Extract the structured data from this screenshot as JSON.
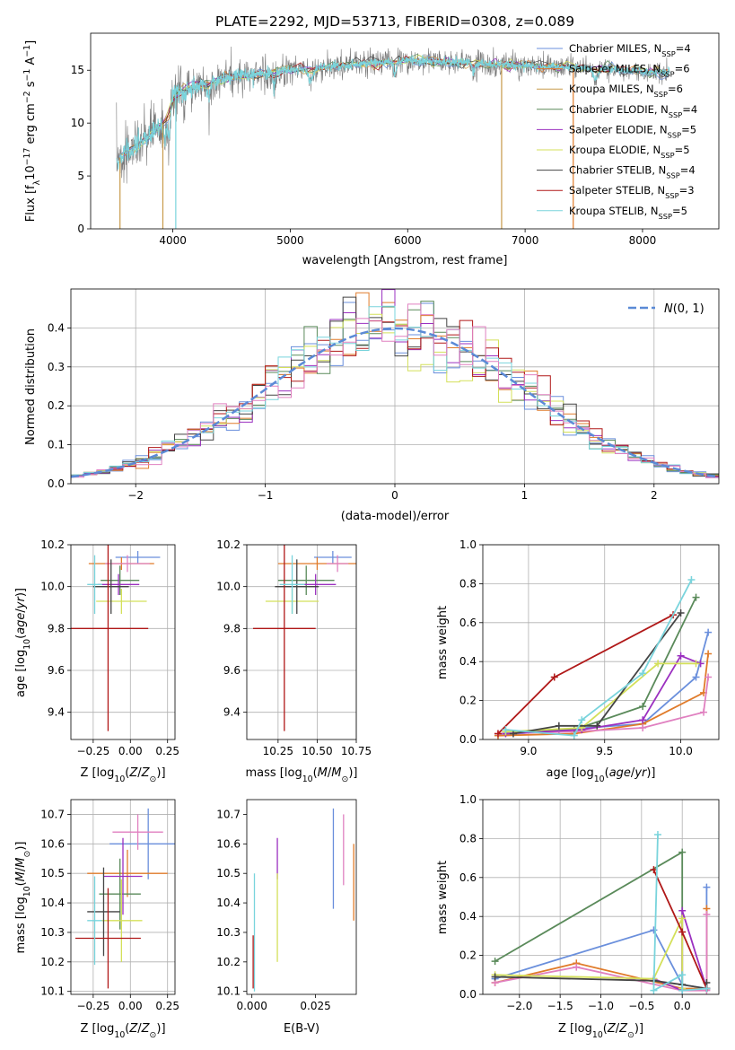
{
  "figure": {
    "title": "PLATE=2292, MJD=53713, FIBERID=0308, z=0.089"
  },
  "chart_data": [
    {
      "id": "spectrum",
      "type": "line",
      "title": "PLATE=2292, MJD=53713, FIBERID=0308, z=0.089",
      "xlabel": "wavelength [Angstrom, rest frame]",
      "ylabel": "Flux [f_λ10^-17 erg cm^-2 s^-1 A^-1]",
      "xlim": [
        3300,
        8650
      ],
      "ylim": [
        0,
        18.5
      ],
      "xticks": [
        4000,
        5000,
        6000,
        7000,
        8000
      ],
      "yticks": [
        0,
        5,
        10,
        15
      ],
      "legend_position": "top-right",
      "legend": [
        {
          "label": "Chabrier MILES, N_SSP=4",
          "color": "#6a8fdc"
        },
        {
          "label": "Salpeter MILES, N_SSP=6",
          "color": "#e07b2a"
        },
        {
          "label": "Kroupa MILES, N_SSP=6",
          "color": "#c79a4a"
        },
        {
          "label": "Chabrier ELODIE, N_SSP=4",
          "color": "#5a8a5a"
        },
        {
          "label": "Salpeter ELODIE, N_SSP=5",
          "color": "#9b30c0"
        },
        {
          "label": "Kroupa ELODIE, N_SSP=5",
          "color": "#d4e05a"
        },
        {
          "label": "Chabrier STELIB, N_SSP=4",
          "color": "#444444"
        },
        {
          "label": "Salpeter STELIB, N_SSP=3",
          "color": "#b01818"
        },
        {
          "label": "Kroupa STELIB, N_SSP=5",
          "color": "#79d4dc"
        }
      ],
      "data_color": "#7a7a7a",
      "model_color": "#79d4dc",
      "continuum": {
        "x": [
          3520,
          3650,
          3800,
          3900,
          3970,
          4000,
          4100,
          4300,
          4500,
          4700,
          5000,
          5300,
          5600,
          6000,
          6500,
          7000,
          7400,
          7800,
          8200
        ],
        "y": [
          6.5,
          7.5,
          8.8,
          9.8,
          10.6,
          12.8,
          13.3,
          13.8,
          14.4,
          14.6,
          15.0,
          15.3,
          15.6,
          15.9,
          15.7,
          15.4,
          15.3,
          15.0,
          14.8
        ]
      }
    },
    {
      "id": "residuals",
      "type": "histogram",
      "xlabel": "(data-model)/error",
      "ylabel": "Normed distribution",
      "xlim": [
        -2.5,
        2.5
      ],
      "ylim": [
        0,
        0.5
      ],
      "xticks": [
        -2,
        -1,
        0,
        1,
        2
      ],
      "yticks": [
        0.0,
        0.1,
        0.2,
        0.3,
        0.4
      ],
      "legend": [
        {
          "label": "N(0,1)",
          "color": "#5b8ad6",
          "style": "dashed"
        }
      ],
      "legend_position": "top-right"
    },
    {
      "id": "age_vs_Z",
      "type": "errorbar",
      "xlabel": "Z [log10(Z/Z☉)]",
      "ylabel": "age  [log10(age/yr)]",
      "xlim": [
        -0.4,
        0.3
      ],
      "ylim": [
        9.27,
        10.2
      ],
      "xticks": [
        -0.25,
        0.0,
        0.25
      ],
      "yticks": [
        9.4,
        9.6,
        9.8,
        10.0,
        10.2
      ],
      "points": [
        {
          "x": 0.05,
          "y": 10.14,
          "xerr": 0.15,
          "yerr": 0.03,
          "color": "#6a8fdc"
        },
        {
          "x": -0.06,
          "y": 10.11,
          "xerr": 0.22,
          "yerr": 0.03,
          "color": "#e07b2a"
        },
        {
          "x": -0.02,
          "y": 10.11,
          "xerr": 0.15,
          "yerr": 0.04,
          "color": "#e080c0"
        },
        {
          "x": -0.07,
          "y": 10.03,
          "xerr": 0.13,
          "yerr": 0.07,
          "color": "#5a8a5a"
        },
        {
          "x": -0.08,
          "y": 10.01,
          "xerr": 0.14,
          "yerr": 0.05,
          "color": "#9b30c0"
        },
        {
          "x": -0.06,
          "y": 9.93,
          "xerr": 0.17,
          "yerr": 0.06,
          "color": "#d4e05a"
        },
        {
          "x": -0.13,
          "y": 10.0,
          "xerr": 0.12,
          "yerr": 0.13,
          "color": "#444444"
        },
        {
          "x": -0.15,
          "y": 9.8,
          "xerr": 0.27,
          "yerr": 0.49,
          "color": "#b01818"
        },
        {
          "x": -0.24,
          "y": 10.01,
          "xerr": 0.05,
          "yerr": 0.14,
          "color": "#79d4dc"
        }
      ]
    },
    {
      "id": "age_vs_mass",
      "type": "errorbar",
      "xlabel": "mass [log10(M/M☉)]",
      "ylabel": "",
      "xlim": [
        10.05,
        10.75
      ],
      "ylim": [
        9.27,
        10.2
      ],
      "xticks": [
        10.25,
        10.5,
        10.75
      ],
      "yticks": [
        9.4,
        9.6,
        9.8,
        10.0,
        10.2
      ],
      "points": [
        {
          "x": 10.6,
          "y": 10.14,
          "xerr": 0.12,
          "yerr": 0.03,
          "color": "#6a8fdc"
        },
        {
          "x": 10.5,
          "y": 10.11,
          "xerr": 0.25,
          "yerr": 0.03,
          "color": "#e07b2a"
        },
        {
          "x": 10.63,
          "y": 10.11,
          "xerr": 0.07,
          "yerr": 0.04,
          "color": "#e080c0"
        },
        {
          "x": 10.43,
          "y": 10.03,
          "xerr": 0.18,
          "yerr": 0.07,
          "color": "#5a8a5a"
        },
        {
          "x": 10.49,
          "y": 10.01,
          "xerr": 0.13,
          "yerr": 0.05,
          "color": "#9b30c0"
        },
        {
          "x": 10.34,
          "y": 9.93,
          "xerr": 0.17,
          "yerr": 0.06,
          "color": "#d4e05a"
        },
        {
          "x": 10.37,
          "y": 10.0,
          "xerr": 0.14,
          "yerr": 0.13,
          "color": "#444444"
        },
        {
          "x": 10.29,
          "y": 9.8,
          "xerr": 0.2,
          "yerr": 0.49,
          "color": "#b01818"
        },
        {
          "x": 10.34,
          "y": 10.01,
          "xerr": 0.08,
          "yerr": 0.14,
          "color": "#79d4dc"
        }
      ]
    },
    {
      "id": "mass_weight_vs_age",
      "type": "line",
      "xlabel": "age  [log10(age/yr)]",
      "ylabel": "mass weight",
      "xlim": [
        8.7,
        10.25
      ],
      "ylim": [
        0,
        1.0
      ],
      "xticks": [
        9.0,
        9.5,
        10.0
      ],
      "yticks": [
        0.0,
        0.2,
        0.4,
        0.6,
        0.8,
        1.0
      ],
      "series": [
        {
          "color": "#6a8fdc",
          "x": [
            8.8,
            9.2,
            9.75,
            10.1,
            10.18
          ],
          "y": [
            0.02,
            0.05,
            0.08,
            0.32,
            0.55
          ]
        },
        {
          "color": "#e07b2a",
          "x": [
            8.8,
            9.3,
            9.75,
            10.15,
            10.18
          ],
          "y": [
            0.02,
            0.03,
            0.08,
            0.24,
            0.44
          ]
        },
        {
          "color": "#e080c0",
          "x": [
            8.8,
            9.3,
            9.75,
            10.15,
            10.18
          ],
          "y": [
            0.03,
            0.04,
            0.06,
            0.14,
            0.32
          ]
        },
        {
          "color": "#5a8a5a",
          "x": [
            8.85,
            9.3,
            9.75,
            10.1
          ],
          "y": [
            0.04,
            0.05,
            0.17,
            0.73
          ]
        },
        {
          "color": "#9b30c0",
          "x": [
            8.85,
            9.35,
            9.75,
            10.0,
            10.13
          ],
          "y": [
            0.03,
            0.05,
            0.1,
            0.43,
            0.39
          ]
        },
        {
          "color": "#d4e05a",
          "x": [
            8.85,
            9.35,
            9.85,
            10.1
          ],
          "y": [
            0.04,
            0.06,
            0.39,
            0.39
          ]
        },
        {
          "color": "#444444",
          "x": [
            8.9,
            9.2,
            9.45,
            10.0
          ],
          "y": [
            0.03,
            0.07,
            0.07,
            0.65
          ]
        },
        {
          "color": "#b01818",
          "x": [
            8.8,
            9.17,
            9.95
          ],
          "y": [
            0.03,
            0.32,
            0.64
          ]
        },
        {
          "color": "#79d4dc",
          "x": [
            8.85,
            9.3,
            9.35,
            9.75,
            10.07
          ],
          "y": [
            0.05,
            0.02,
            0.1,
            0.34,
            0.82
          ]
        }
      ]
    },
    {
      "id": "mass_vs_Z",
      "type": "errorbar",
      "xlabel": "Z [log10(Z/Z☉)]",
      "ylabel": "mass [log10(M/M☉)]",
      "xlim": [
        -0.4,
        0.3
      ],
      "ylim": [
        10.09,
        10.75
      ],
      "xticks": [
        -0.25,
        0.0,
        0.25
      ],
      "yticks": [
        10.1,
        10.2,
        10.3,
        10.4,
        10.5,
        10.6,
        10.7
      ],
      "points": [
        {
          "x": 0.12,
          "y": 10.6,
          "xerr": 0.26,
          "yerr": 0.12,
          "color": "#6a8fdc"
        },
        {
          "x": -0.02,
          "y": 10.5,
          "xerr": 0.27,
          "yerr": 0.08,
          "color": "#e07b2a"
        },
        {
          "x": 0.05,
          "y": 10.64,
          "xerr": 0.17,
          "yerr": 0.06,
          "color": "#e080c0"
        },
        {
          "x": -0.07,
          "y": 10.43,
          "xerr": 0.14,
          "yerr": 0.12,
          "color": "#5a8a5a"
        },
        {
          "x": -0.05,
          "y": 10.49,
          "xerr": 0.13,
          "yerr": 0.13,
          "color": "#9b30c0"
        },
        {
          "x": -0.06,
          "y": 10.34,
          "xerr": 0.14,
          "yerr": 0.14,
          "color": "#d4e05a"
        },
        {
          "x": -0.18,
          "y": 10.37,
          "xerr": 0.11,
          "yerr": 0.15,
          "color": "#444444"
        },
        {
          "x": -0.15,
          "y": 10.28,
          "xerr": 0.22,
          "yerr": 0.17,
          "color": "#b01818"
        },
        {
          "x": -0.24,
          "y": 10.34,
          "xerr": 0.05,
          "yerr": 0.15,
          "color": "#79d4dc"
        }
      ]
    },
    {
      "id": "mass_vs_ebv",
      "type": "errorbar",
      "xlabel": "E(B-V)",
      "ylabel": "",
      "xlim": [
        -0.002,
        0.041
      ],
      "ylim": [
        10.09,
        10.75
      ],
      "xticks": [
        0.0,
        0.025
      ],
      "xtick_labels": [
        "0.000",
        "0.025"
      ],
      "yticks": [
        10.1,
        10.2,
        10.3,
        10.4,
        10.5,
        10.6,
        10.7
      ],
      "points": [
        {
          "x": 0.032,
          "y": 10.55,
          "yerr": 0.17,
          "color": "#6a8fdc"
        },
        {
          "x": 0.04,
          "y": 10.47,
          "yerr": 0.13,
          "color": "#e07b2a"
        },
        {
          "x": 0.036,
          "y": 10.58,
          "yerr": 0.12,
          "color": "#e080c0"
        },
        {
          "x": 0.01,
          "y": 10.55,
          "yerr": 0.07,
          "color": "#9b30c0"
        },
        {
          "x": 0.01,
          "y": 10.35,
          "yerr": 0.15,
          "color": "#d4e05a"
        },
        {
          "x": 0.001,
          "y": 10.3,
          "yerr": 0.2,
          "color": "#79d4dc"
        },
        {
          "x": 0.0005,
          "y": 10.2,
          "yerr": 0.09,
          "color": "#b01818"
        }
      ]
    },
    {
      "id": "mass_weight_vs_Z",
      "type": "line",
      "xlabel": "Z [log10(Z/Z☉)]",
      "ylabel": "mass weight",
      "xlim": [
        -2.45,
        0.45
      ],
      "ylim": [
        0,
        1.0
      ],
      "xticks": [
        -2.0,
        -1.5,
        -1.0,
        -0.5,
        0.0
      ],
      "yticks": [
        0.0,
        0.2,
        0.4,
        0.6,
        0.8,
        1.0
      ],
      "series": [
        {
          "color": "#6a8fdc",
          "x": [
            -2.3,
            -0.35,
            0.0,
            0.3,
            0.3
          ],
          "y": [
            0.08,
            0.33,
            0.05,
            0.03,
            0.55
          ]
        },
        {
          "color": "#e07b2a",
          "x": [
            -2.3,
            -1.3,
            0.0,
            0.3,
            0.3
          ],
          "y": [
            0.06,
            0.16,
            0.03,
            0.03,
            0.44
          ]
        },
        {
          "color": "#e080c0",
          "x": [
            -2.3,
            -1.3,
            0.0,
            0.3,
            0.3
          ],
          "y": [
            0.06,
            0.14,
            0.02,
            0.02,
            0.41
          ]
        },
        {
          "color": "#5a8a5a",
          "x": [
            -2.3,
            0.0,
            0.0
          ],
          "y": [
            0.17,
            0.73,
            0.05
          ]
        },
        {
          "color": "#9b30c0",
          "x": [
            -0.35,
            0.0,
            0.0,
            0.3
          ],
          "y": [
            0.08,
            0.02,
            0.43,
            0.03
          ]
        },
        {
          "color": "#d4e05a",
          "x": [
            -2.3,
            -0.35,
            0.0,
            0.0
          ],
          "y": [
            0.1,
            0.08,
            0.39,
            0.03
          ]
        },
        {
          "color": "#444444",
          "x": [
            -2.3,
            -0.35,
            0.0,
            0.3,
            0.3
          ],
          "y": [
            0.09,
            0.07,
            0.05,
            0.03,
            0.06
          ]
        },
        {
          "color": "#b01818",
          "x": [
            -0.35,
            0.0,
            0.3
          ],
          "y": [
            0.64,
            0.32,
            0.03
          ]
        },
        {
          "color": "#79d4dc",
          "x": [
            -0.3,
            -0.35,
            0.0,
            0.0,
            0.3
          ],
          "y": [
            0.82,
            0.02,
            0.1,
            0.02,
            0.03
          ]
        }
      ]
    }
  ]
}
